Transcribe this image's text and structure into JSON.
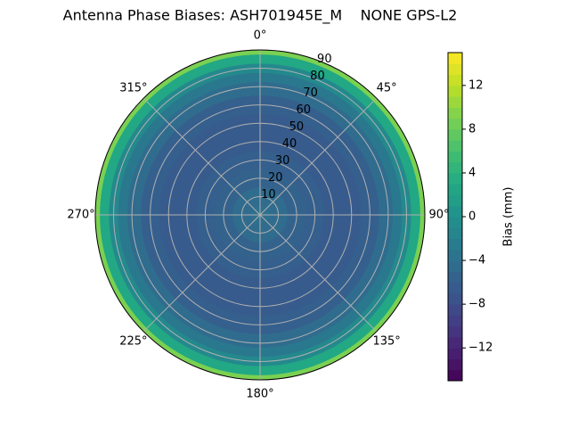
{
  "chart_data": {
    "type": "polar_contour",
    "title": "Antenna Phase Biases: ASH701945E_M    NONE GPS-L2",
    "colorbar_label": "Bias (mm)",
    "colormap": "viridis",
    "x": [
      0,
      10,
      20,
      30,
      40,
      50,
      60,
      70,
      75,
      80,
      85,
      90
    ],
    "values": [
      -4,
      -4.5,
      -5.5,
      -6,
      -6.5,
      -6.5,
      -6,
      -4.5,
      -3,
      -1,
      3,
      9
    ],
    "rlim": [
      0,
      90
    ],
    "rticks": [
      10,
      20,
      30,
      40,
      50,
      60,
      70,
      80,
      90
    ],
    "thetaticks": [
      {
        "value": 0,
        "label": "0°"
      },
      {
        "value": 45,
        "label": "45°"
      },
      {
        "value": 90,
        "label": "90°"
      },
      {
        "value": 135,
        "label": "135°"
      },
      {
        "value": 180,
        "label": "180°"
      },
      {
        "value": 225,
        "label": "225°"
      },
      {
        "value": 270,
        "label": "270°"
      },
      {
        "value": 315,
        "label": "315°"
      }
    ],
    "zlim": [
      -15,
      15
    ],
    "zticks": [
      {
        "value": -12,
        "label": "−12"
      },
      {
        "value": -8,
        "label": "−8"
      },
      {
        "value": -4,
        "label": "−4"
      },
      0,
      4,
      8,
      12
    ],
    "grid": true
  }
}
